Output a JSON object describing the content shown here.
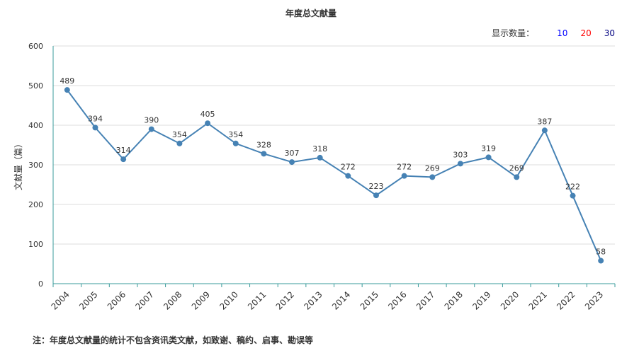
{
  "chart_data": {
    "type": "line",
    "title": "年度总文献量",
    "ylabel": "文献量（篇）",
    "xlabel": "",
    "categories": [
      "2004",
      "2005",
      "2006",
      "2007",
      "2008",
      "2009",
      "2010",
      "2011",
      "2012",
      "2013",
      "2014",
      "2015",
      "2016",
      "2017",
      "2018",
      "2019",
      "2020",
      "2021",
      "2022",
      "2023"
    ],
    "series": [
      {
        "values": [
          489,
          394,
          314,
          390,
          354,
          405,
          354,
          328,
          307,
          318,
          272,
          223,
          272,
          269,
          303,
          319,
          269,
          387,
          222,
          58
        ]
      }
    ],
    "ylim": [
      0,
      600
    ],
    "yticks": [
      "0",
      "100",
      "200",
      "300",
      "400",
      "500",
      "600"
    ],
    "grid": true,
    "colors": {
      "line": "#4682b4",
      "axis": "#3a9b9b",
      "grid": "#dddddd"
    }
  },
  "count_picker": {
    "label": "显示数量：",
    "options": [
      {
        "text": "10",
        "color": "#0000ff"
      },
      {
        "text": "20",
        "color": "#ff0000"
      },
      {
        "text": "30",
        "color": "#000080"
      }
    ]
  },
  "footnote": "注：年度总文献量的统计不包含资讯类文献，如致谢、稿约、启事、勘误等"
}
